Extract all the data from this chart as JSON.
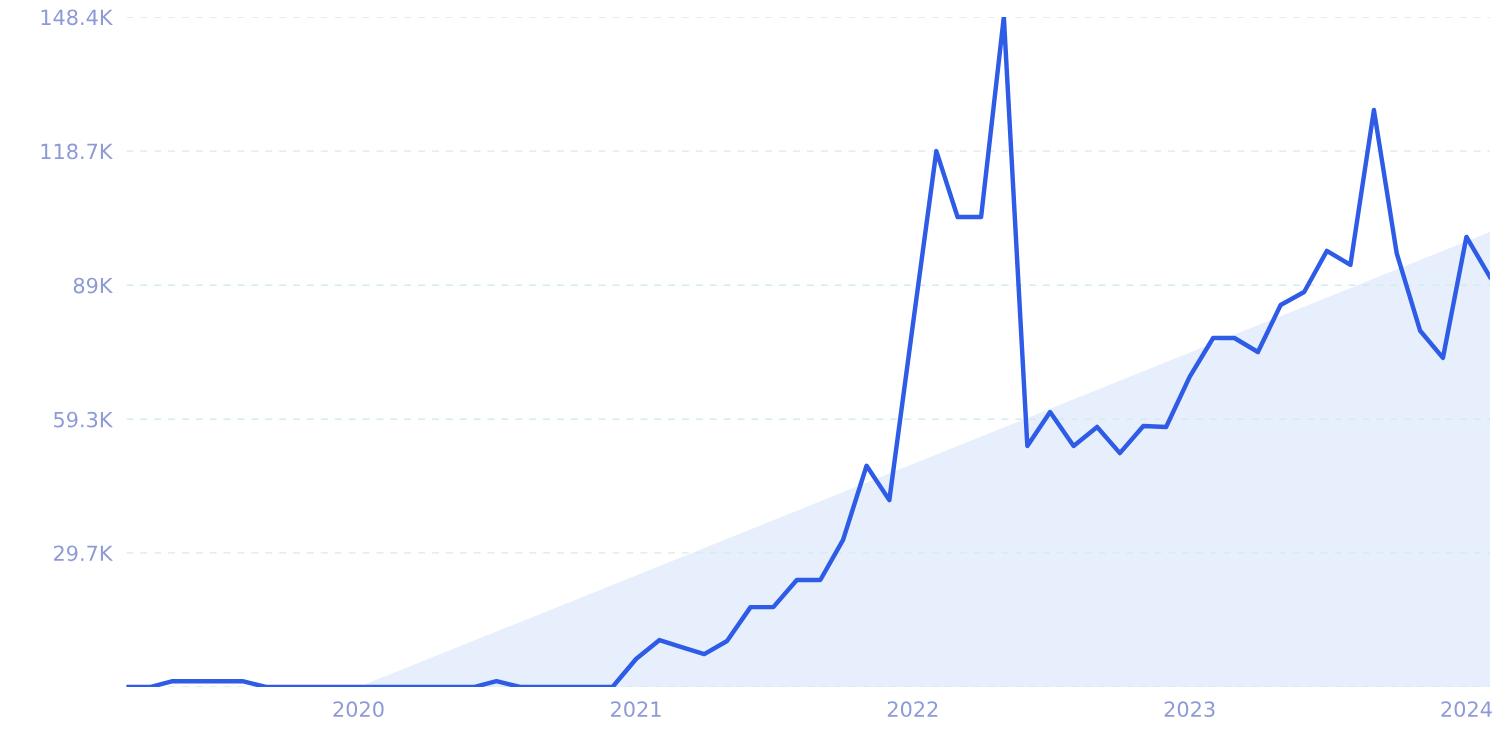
{
  "chart_data": {
    "type": "line",
    "x": [
      "2019-03",
      "2019-04",
      "2019-05",
      "2019-06",
      "2019-07",
      "2019-08",
      "2019-09",
      "2019-10",
      "2019-11",
      "2019-12",
      "2020-01",
      "2020-02",
      "2020-03",
      "2020-04",
      "2020-05",
      "2020-06",
      "2020-07",
      "2020-08",
      "2020-09",
      "2020-10",
      "2020-11",
      "2020-12",
      "2021-01",
      "2021-02",
      "2021-03",
      "2021-04",
      "2021-05",
      "2021-06",
      "2021-07",
      "2021-08",
      "2021-09",
      "2021-10",
      "2021-11",
      "2021-12",
      "2022-01",
      "2022-02",
      "2022-03",
      "2022-04",
      "2022-05",
      "2022-06",
      "2022-07",
      "2022-08",
      "2022-09",
      "2022-10",
      "2022-11",
      "2022-12",
      "2023-01",
      "2023-02",
      "2023-03",
      "2023-04",
      "2023-05",
      "2023-06",
      "2023-07",
      "2023-08",
      "2023-09",
      "2023-10",
      "2023-11",
      "2023-12",
      "2024-01",
      "2024-02"
    ],
    "series": [
      {
        "type": "area",
        "color": "#e6effb",
        "x": [
          "2020-01",
          "2024-02"
        ],
        "values": [
          0,
          100800
        ]
      },
      {
        "type": "line",
        "color": "#2e5ce6",
        "values": [
          0,
          0,
          1300,
          1300,
          1300,
          1300,
          0,
          0,
          0,
          0,
          0,
          0,
          0,
          0,
          0,
          0,
          1300,
          0,
          0,
          0,
          0,
          0,
          6200,
          10400,
          8900,
          7300,
          10200,
          17700,
          17700,
          23700,
          23700,
          32600,
          49000,
          41400,
          80200,
          118700,
          104100,
          104100,
          148400,
          53400,
          60900,
          53400,
          57600,
          51800,
          57800,
          57600,
          68700,
          77300,
          77300,
          74200,
          84600,
          87500,
          96600,
          93500,
          127800,
          96100,
          78900,
          72900,
          99700,
          90800
        ]
      }
    ],
    "xlim": [
      "2019-03",
      "2024-02"
    ],
    "xticks": [
      {
        "value": "2020-01",
        "label": "2020"
      },
      {
        "value": "2021-01",
        "label": "2021"
      },
      {
        "value": "2022-01",
        "label": "2022"
      },
      {
        "value": "2023-01",
        "label": "2023"
      },
      {
        "value": "2024-01",
        "label": "2024"
      }
    ],
    "ylim": [
      0,
      148400
    ],
    "yticks": [
      {
        "value": 0,
        "label": null
      },
      {
        "value": 29700,
        "label": "29.7K"
      },
      {
        "value": 59300,
        "label": "59.3K"
      },
      {
        "value": 89000,
        "label": "89K"
      },
      {
        "value": 118700,
        "label": "118.7K"
      },
      {
        "value": 148400,
        "label": "148.4K"
      }
    ],
    "grid": "y",
    "line_style": "solid",
    "marker": "none"
  }
}
